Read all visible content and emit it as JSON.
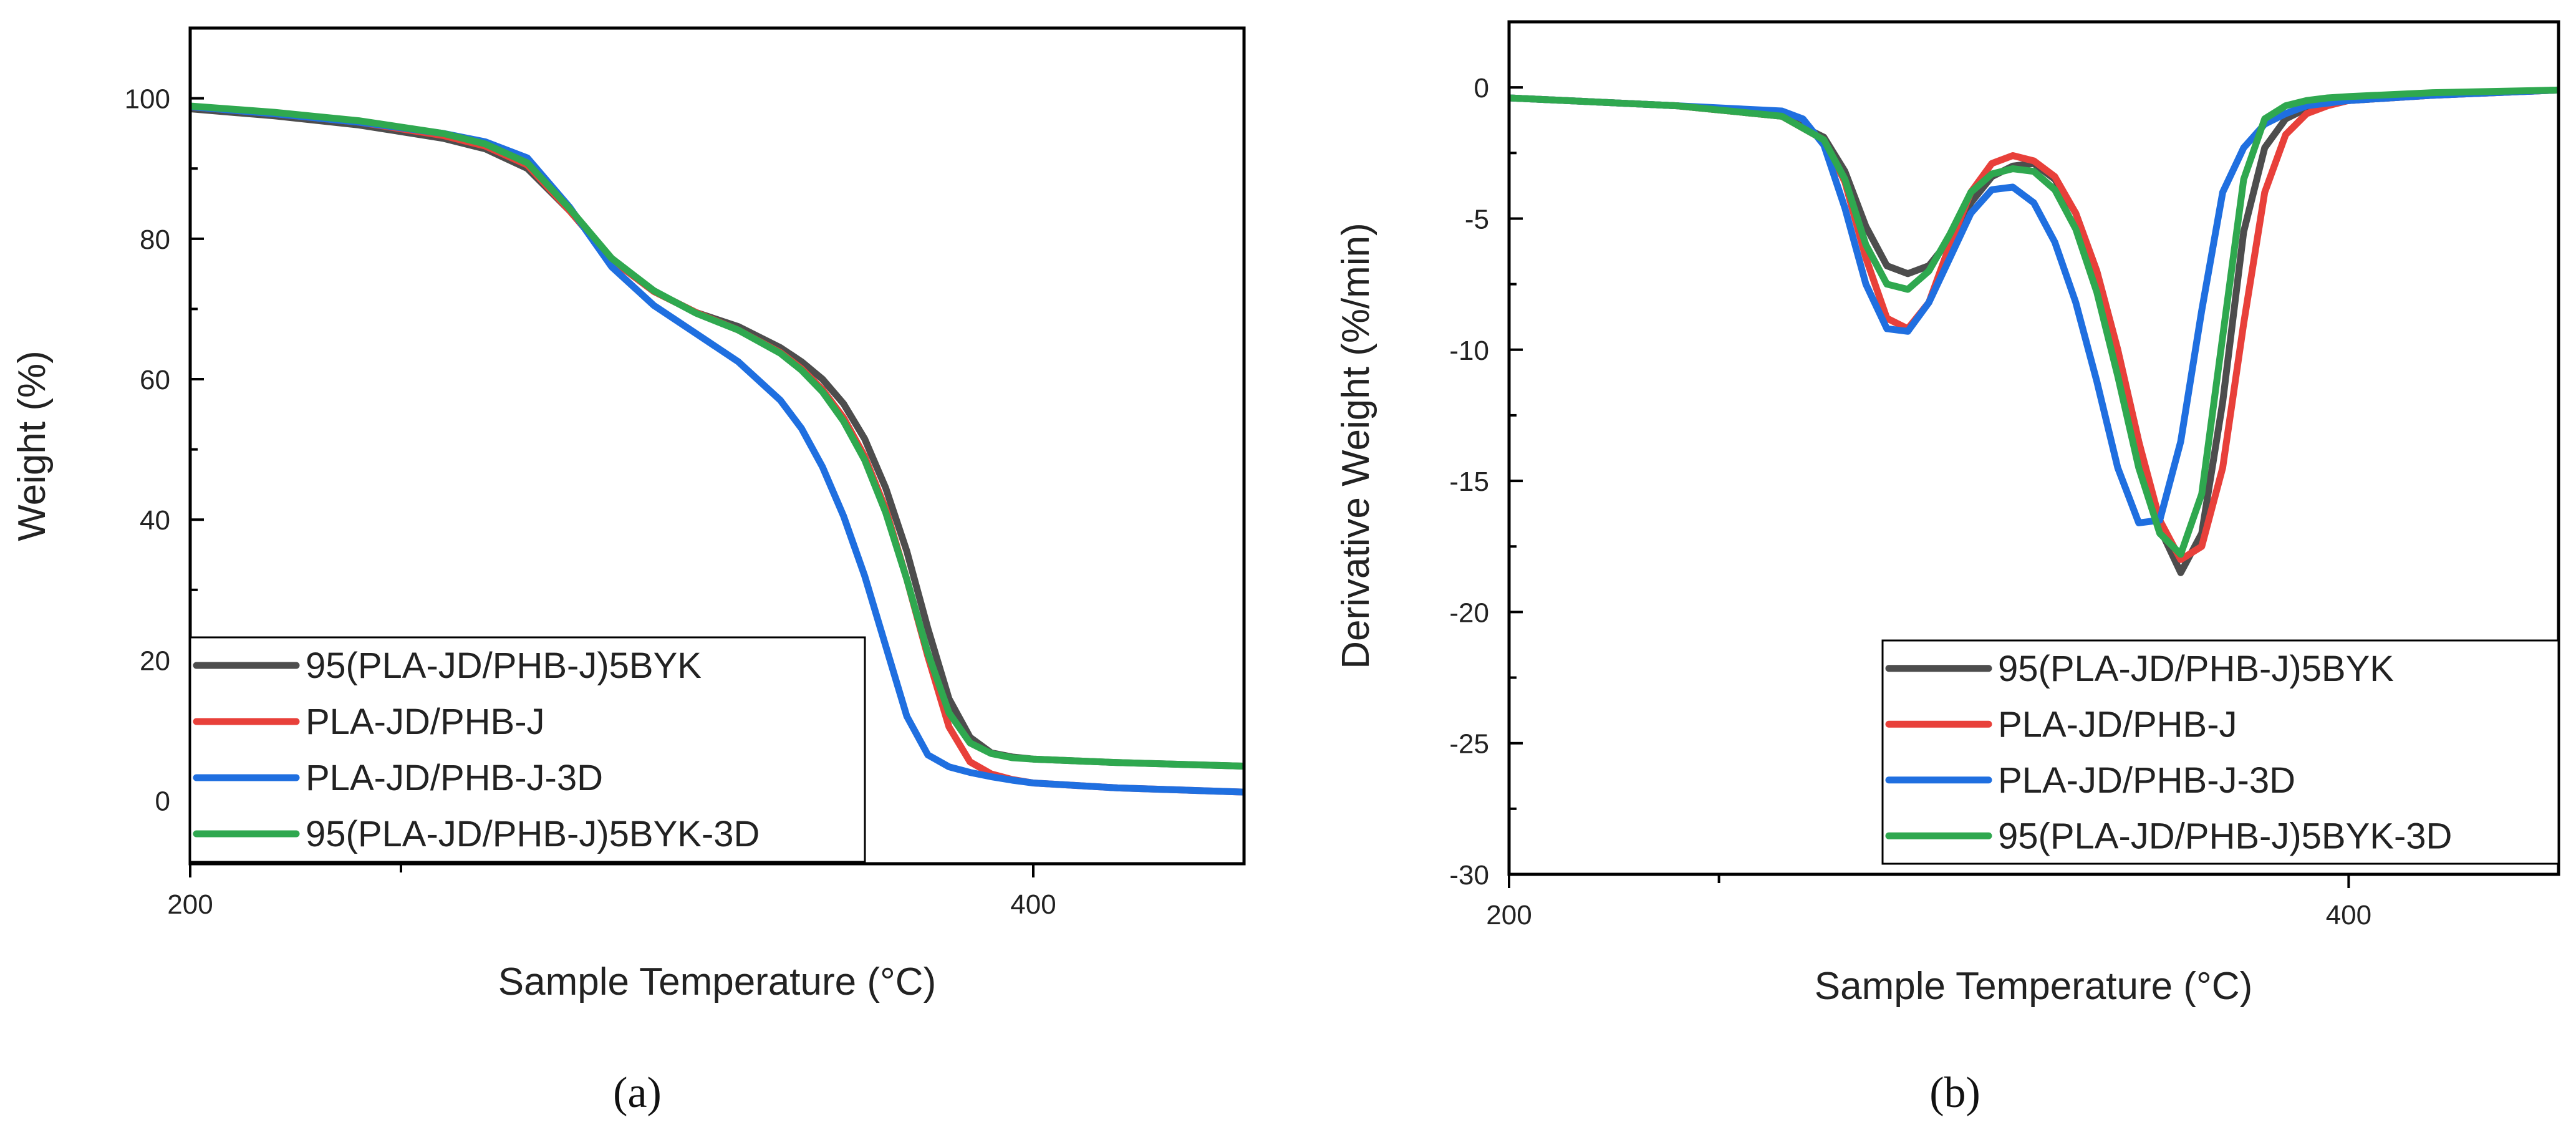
{
  "figure": {
    "panel_labels": [
      "(a)",
      "(b)"
    ]
  },
  "chart_data": [
    {
      "type": "line",
      "panel": "(a)",
      "title": "",
      "xlabel": "Sample Temperature (°C)",
      "ylabel": "Weight (%)",
      "xlim": [
        200,
        450
      ],
      "ylim": [
        -9,
        110
      ],
      "xticks": [
        200,
        400
      ],
      "yticks": [
        0,
        20,
        40,
        60,
        80,
        100
      ],
      "x_minor": 250,
      "legend_position": "bottom-left",
      "series": [
        {
          "name": "95(PLA-JD/PHB-J)5BYK",
          "color": "#4d4d4d",
          "x": [
            200,
            220,
            240,
            260,
            270,
            280,
            290,
            300,
            310,
            320,
            330,
            340,
            345,
            350,
            355,
            360,
            365,
            370,
            375,
            380,
            385,
            390,
            395,
            400,
            420,
            450
          ],
          "y": [
            98.5,
            97.5,
            96.2,
            94.3,
            92.8,
            90.0,
            84.0,
            77.0,
            72.5,
            69.5,
            67.5,
            64.5,
            62.5,
            60.0,
            56.5,
            51.5,
            44.5,
            35.5,
            24.5,
            14.5,
            9.0,
            6.8,
            6.2,
            5.9,
            5.4,
            4.9
          ]
        },
        {
          "name": "PLA-JD/PHB-J",
          "color": "#e8403a",
          "x": [
            200,
            220,
            240,
            260,
            270,
            280,
            290,
            300,
            310,
            320,
            330,
            340,
            345,
            350,
            355,
            360,
            365,
            370,
            375,
            380,
            385,
            390,
            395,
            400,
            420,
            450
          ],
          "y": [
            98.8,
            97.8,
            96.6,
            94.7,
            93.2,
            90.5,
            84.0,
            77.0,
            72.5,
            69.5,
            67.0,
            63.8,
            61.5,
            58.5,
            54.5,
            49.0,
            41.5,
            31.5,
            20.5,
            10.5,
            5.5,
            3.8,
            3.0,
            2.5,
            1.8,
            1.2
          ]
        },
        {
          "name": "PLA-JD/PHB-J-3D",
          "color": "#1f6fe0",
          "x": [
            200,
            220,
            240,
            260,
            270,
            280,
            290,
            300,
            310,
            320,
            330,
            340,
            345,
            350,
            355,
            360,
            365,
            370,
            375,
            380,
            385,
            390,
            395,
            400,
            420,
            450
          ],
          "y": [
            98.8,
            97.8,
            96.6,
            95.0,
            93.8,
            91.5,
            84.5,
            76.0,
            70.5,
            66.5,
            62.5,
            57.0,
            53.0,
            47.5,
            40.5,
            32.0,
            22.0,
            12.0,
            6.5,
            4.8,
            4.0,
            3.4,
            2.9,
            2.5,
            1.8,
            1.2
          ]
        },
        {
          "name": "95(PLA-JD/PHB-J)5BYK-3D",
          "color": "#2fa84f",
          "x": [
            200,
            220,
            240,
            260,
            270,
            280,
            290,
            300,
            310,
            320,
            330,
            340,
            345,
            350,
            355,
            360,
            365,
            370,
            375,
            380,
            385,
            390,
            395,
            400,
            420,
            450
          ],
          "y": [
            98.9,
            98.0,
            96.8,
            95.0,
            93.5,
            90.8,
            84.3,
            77.2,
            72.6,
            69.4,
            67.0,
            63.7,
            61.3,
            58.2,
            54.0,
            48.5,
            41.0,
            31.5,
            21.0,
            12.5,
            8.2,
            6.7,
            6.1,
            5.9,
            5.4,
            4.9
          ]
        }
      ]
    },
    {
      "type": "line",
      "panel": "(b)",
      "title": "",
      "xlabel": "Sample Temperature (°C)",
      "ylabel": "Derivative Weight (%/min)",
      "xlim": [
        200,
        450
      ],
      "ylim": [
        -30,
        2.5
      ],
      "xticks": [
        200,
        400
      ],
      "yticks": [
        0,
        -5,
        -10,
        -15,
        -20,
        -25,
        -30
      ],
      "x_minor": 250,
      "legend_position": "bottom-right",
      "series": [
        {
          "name": "95(PLA-JD/PHB-J)5BYK",
          "color": "#4d4d4d",
          "x": [
            200,
            240,
            265,
            275,
            280,
            285,
            290,
            295,
            300,
            305,
            310,
            315,
            320,
            325,
            330,
            335,
            340,
            345,
            350,
            355,
            360,
            365,
            370,
            375,
            380,
            385,
            390,
            395,
            400,
            420,
            450
          ],
          "y": [
            -0.4,
            -0.7,
            -1.1,
            -1.9,
            -3.2,
            -5.3,
            -6.8,
            -7.1,
            -6.8,
            -5.8,
            -4.4,
            -3.4,
            -3.0,
            -2.9,
            -3.5,
            -4.8,
            -7.0,
            -10.0,
            -13.5,
            -16.8,
            -18.5,
            -17.0,
            -12.0,
            -5.5,
            -2.3,
            -1.2,
            -0.8,
            -0.6,
            -0.5,
            -0.3,
            -0.1
          ]
        },
        {
          "name": "PLA-JD/PHB-J",
          "color": "#e8403a",
          "x": [
            200,
            240,
            265,
            275,
            280,
            285,
            290,
            295,
            300,
            305,
            310,
            315,
            320,
            325,
            330,
            335,
            340,
            345,
            350,
            355,
            360,
            365,
            370,
            375,
            380,
            385,
            390,
            395,
            400,
            420,
            450
          ],
          "y": [
            -0.4,
            -0.7,
            -1.1,
            -2.0,
            -3.6,
            -6.5,
            -8.8,
            -9.2,
            -8.2,
            -6.0,
            -4.0,
            -2.9,
            -2.6,
            -2.8,
            -3.4,
            -4.8,
            -7.0,
            -10.0,
            -13.5,
            -16.5,
            -18.0,
            -17.5,
            -14.5,
            -9.0,
            -4.0,
            -1.8,
            -1.0,
            -0.7,
            -0.5,
            -0.3,
            -0.1
          ]
        },
        {
          "name": "PLA-JD/PHB-J-3D",
          "color": "#1f6fe0",
          "x": [
            200,
            240,
            265,
            270,
            275,
            280,
            285,
            290,
            295,
            300,
            305,
            310,
            315,
            320,
            325,
            330,
            335,
            340,
            345,
            350,
            355,
            360,
            365,
            370,
            375,
            380,
            385,
            390,
            400,
            420,
            450
          ],
          "y": [
            -0.4,
            -0.7,
            -0.9,
            -1.2,
            -2.2,
            -4.6,
            -7.5,
            -9.2,
            -9.3,
            -8.2,
            -6.5,
            -4.8,
            -3.9,
            -3.8,
            -4.4,
            -5.9,
            -8.2,
            -11.2,
            -14.5,
            -16.6,
            -16.5,
            -13.5,
            -8.5,
            -4.0,
            -2.3,
            -1.4,
            -1.0,
            -0.7,
            -0.5,
            -0.3,
            -0.1
          ]
        },
        {
          "name": "95(PLA-JD/PHB-J)5BYK-3D",
          "color": "#2fa84f",
          "x": [
            200,
            240,
            265,
            275,
            280,
            285,
            290,
            295,
            300,
            305,
            310,
            315,
            320,
            325,
            330,
            335,
            340,
            345,
            350,
            355,
            360,
            365,
            370,
            375,
            380,
            385,
            390,
            395,
            400,
            420,
            450
          ],
          "y": [
            -0.4,
            -0.7,
            -1.1,
            -2.0,
            -3.5,
            -6.0,
            -7.5,
            -7.7,
            -7.0,
            -5.6,
            -4.0,
            -3.3,
            -3.1,
            -3.2,
            -3.9,
            -5.4,
            -7.8,
            -11.0,
            -14.5,
            -17.0,
            -17.8,
            -15.5,
            -9.5,
            -3.5,
            -1.2,
            -0.7,
            -0.5,
            -0.4,
            -0.35,
            -0.2,
            -0.1
          ]
        }
      ]
    }
  ]
}
